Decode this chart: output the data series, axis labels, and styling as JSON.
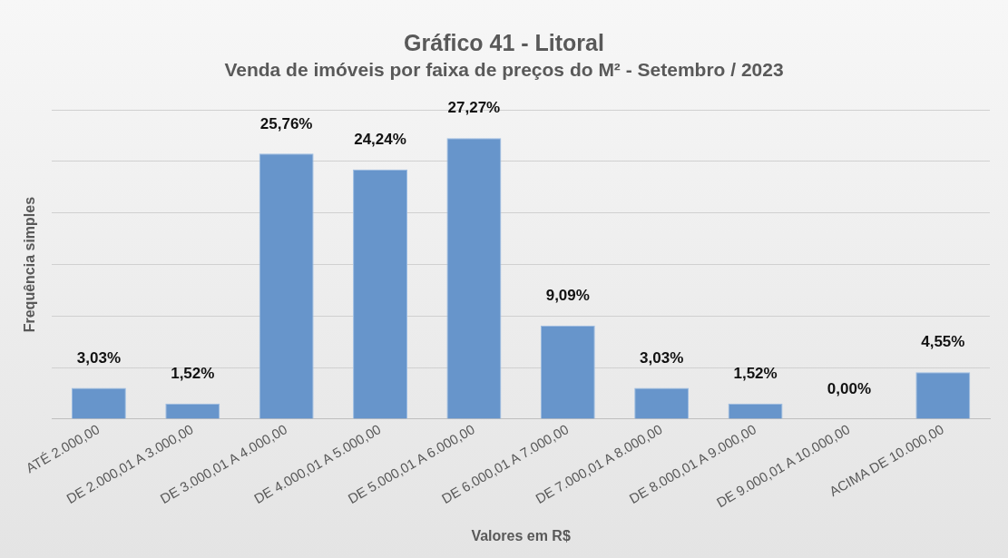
{
  "chart_data": {
    "type": "bar",
    "title": "Gráfico 41 - Litoral",
    "subtitle": "Venda de imóveis por faixa de preços do M² - Setembro / 2023",
    "xlabel": "Valores em R$",
    "ylabel": "Frequência simples",
    "categories": [
      "ATÉ 2.000,00",
      "DE 2.000,01 A 3.000,00",
      "DE 3.000,01 A 4.000,00",
      "DE 4.000,01 A 5.000,00",
      "DE 5.000,01 A 6.000,00",
      "DE 6.000,01 A 7.000,00",
      "DE 7.000,01 A 8.000,00",
      "DE 8.000,01 A 9.000,00",
      "DE 9.000,01 A 10.000,00",
      "ACIMA DE 10.000,00"
    ],
    "values": [
      3.03,
      1.52,
      25.76,
      24.24,
      27.27,
      9.09,
      3.03,
      1.52,
      0,
      4.55
    ],
    "value_labels": [
      "3,03%",
      "1,52%",
      "25,76%",
      "24,24%",
      "27,27%",
      "9,09%",
      "3,03%",
      "1,52%",
      "0,00%",
      "4,55%"
    ],
    "color": "#6795cb",
    "ylim": [
      0,
      30
    ],
    "yticks": [
      {
        "value": 0,
        "label": null
      },
      {
        "value": 5,
        "label": null
      },
      {
        "value": 10,
        "label": null
      },
      {
        "value": 15,
        "label": null
      },
      {
        "value": 20,
        "label": null
      },
      {
        "value": 25,
        "label": null
      },
      {
        "value": 30,
        "label": null
      }
    ],
    "grid": "y",
    "tick_labels": "x",
    "legend": false
  }
}
